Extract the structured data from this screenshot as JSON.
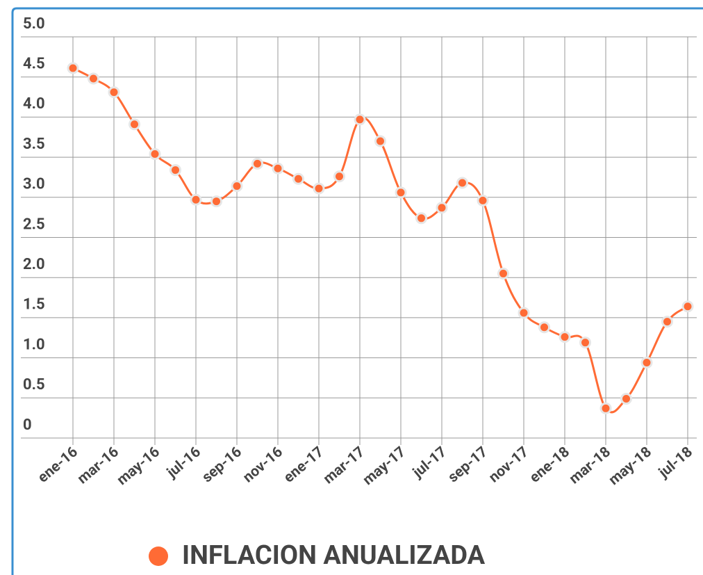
{
  "chart_data": {
    "type": "line",
    "categories": [
      "ene-16",
      null,
      "mar-16",
      null,
      "may-16",
      null,
      "jul-16",
      null,
      "sep-16",
      null,
      "nov-16",
      null,
      "ene-17",
      null,
      "mar-17",
      null,
      "may-17",
      null,
      "jul-17",
      null,
      "sep-17",
      null,
      "nov-17",
      null,
      "ene-18",
      null,
      "mar-18",
      null,
      "may-18",
      null,
      "jul-18"
    ],
    "series": [
      {
        "name": "INFLACION ANUALIZADA",
        "color": "#ff6b35",
        "values": [
          4.61,
          4.48,
          4.31,
          3.91,
          3.54,
          3.34,
          2.97,
          2.95,
          3.14,
          3.42,
          3.36,
          3.23,
          3.11,
          3.26,
          3.97,
          3.7,
          3.06,
          2.74,
          2.87,
          3.18,
          2.96,
          2.05,
          1.56,
          1.38,
          1.26,
          1.19,
          0.37,
          0.49,
          0.94,
          1.45,
          1.64
        ]
      }
    ],
    "ylim": [
      0,
      5
    ],
    "yticks": [
      0,
      0.5,
      {
        "value": 1,
        "label": "1.0"
      },
      1.5,
      {
        "value": 2,
        "label": "2.0"
      },
      2.5,
      {
        "value": 3,
        "label": "3.0"
      },
      3.5,
      {
        "value": 4,
        "label": "4.0"
      },
      4.5,
      {
        "value": 5,
        "label": "5.0"
      }
    ],
    "grid": true
  }
}
